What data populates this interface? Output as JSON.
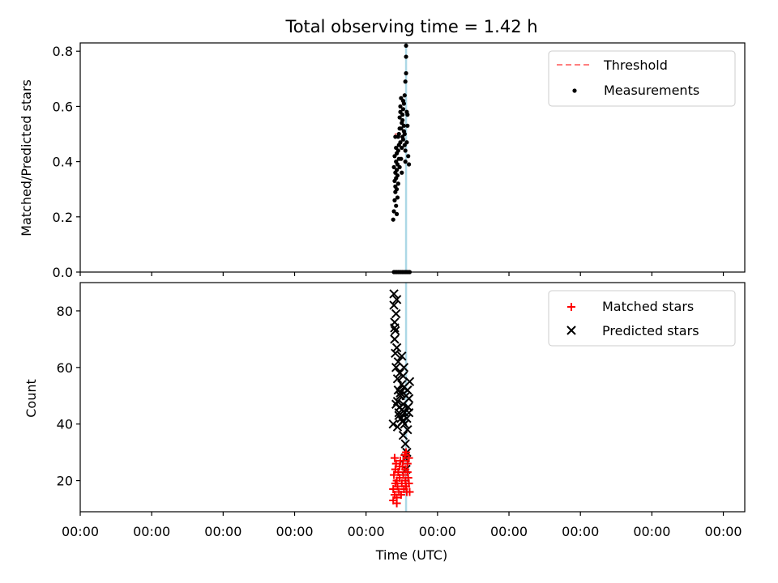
{
  "title": "Total observing time = 1.42 h",
  "x_tick_labels": [
    "00:00",
    "00:00",
    "00:00",
    "00:00",
    "00:00",
    "00:00",
    "00:00",
    "00:00",
    "00:00",
    "00:00"
  ],
  "xlabel": "Time (UTC)",
  "chart_data": [
    {
      "type": "scatter",
      "ylabel": "Matched/Predicted stars",
      "ylim": [
        0,
        0.83
      ],
      "yticks": [
        0.0,
        0.2,
        0.4,
        0.6,
        0.8
      ],
      "ytick_labels": [
        "0.0",
        "0.2",
        "0.4",
        "0.6",
        "0.8"
      ],
      "xlim": [
        0,
        9.3
      ],
      "grid": false,
      "legend": {
        "position": "top-right",
        "entries": [
          "Threshold",
          "Measurements"
        ]
      },
      "threshold": {
        "name": "Threshold",
        "value": 0.5,
        "color": "#ff7f7f",
        "x": [
          4.4,
          4.56
        ]
      },
      "vline": {
        "x": 4.56,
        "color": "#add8e6"
      },
      "series": [
        {
          "name": "Measurements",
          "color": "#000000",
          "x": [
            4.38,
            4.39,
            4.39,
            4.4,
            4.4,
            4.4,
            4.41,
            4.41,
            4.41,
            4.41,
            4.42,
            4.42,
            4.42,
            4.42,
            4.43,
            4.43,
            4.43,
            4.43,
            4.44,
            4.44,
            4.44,
            4.45,
            4.45,
            4.45,
            4.46,
            4.46,
            4.46,
            4.47,
            4.47,
            4.47,
            4.48,
            4.48,
            4.48,
            4.49,
            4.49,
            4.49,
            4.5,
            4.5,
            4.5,
            4.51,
            4.51,
            4.51,
            4.52,
            4.52,
            4.52,
            4.53,
            4.53,
            4.53,
            4.54,
            4.54,
            4.54,
            4.55,
            4.55,
            4.55,
            4.56,
            4.56,
            4.56,
            4.57,
            4.57,
            4.58,
            4.58,
            4.59,
            4.6,
            4.39,
            4.41,
            4.43,
            4.45,
            4.47,
            4.49,
            4.51,
            4.53,
            4.55,
            4.57,
            4.59,
            4.61
          ],
          "y": [
            0.19,
            0.22,
            0.38,
            0.42,
            0.26,
            0.33,
            0.29,
            0.36,
            0.49,
            0.31,
            0.45,
            0.24,
            0.4,
            0.34,
            0.21,
            0.37,
            0.3,
            0.43,
            0.27,
            0.39,
            0.35,
            0.44,
            0.32,
            0.49,
            0.5,
            0.41,
            0.46,
            0.52,
            0.56,
            0.38,
            0.47,
            0.58,
            0.6,
            0.52,
            0.63,
            0.41,
            0.45,
            0.54,
            0.36,
            0.49,
            0.57,
            0.55,
            0.59,
            0.62,
            0.48,
            0.53,
            0.51,
            0.61,
            0.46,
            0.5,
            0.64,
            0.4,
            0.44,
            0.69,
            0.72,
            0.78,
            0.82,
            0.58,
            0.47,
            0.57,
            0.53,
            0.42,
            0.39,
            0.0,
            0.0,
            0.0,
            0.0,
            0.0,
            0.0,
            0.0,
            0.0,
            0.0,
            0.0,
            0.0,
            0.0
          ]
        }
      ]
    },
    {
      "type": "scatter",
      "ylabel": "Count",
      "ylim": [
        9,
        90
      ],
      "yticks": [
        20,
        40,
        60,
        80
      ],
      "ytick_labels": [
        "20",
        "40",
        "60",
        "80"
      ],
      "xlim": [
        0,
        9.3
      ],
      "grid": false,
      "legend": {
        "position": "top-right",
        "entries": [
          "Matched stars",
          "Predicted stars"
        ]
      },
      "vline": {
        "x": 4.56,
        "color": "#add8e6"
      },
      "series": [
        {
          "name": "Matched stars",
          "marker": "plus",
          "color": "#ff0000",
          "x": [
            4.38,
            4.38,
            4.39,
            4.4,
            4.4,
            4.41,
            4.41,
            4.42,
            4.43,
            4.43,
            4.44,
            4.45,
            4.46,
            4.47,
            4.48,
            4.49,
            4.5,
            4.51,
            4.52,
            4.53,
            4.54,
            4.55,
            4.55,
            4.56,
            4.57,
            4.58,
            4.59,
            4.6,
            4.61,
            4.6,
            4.58,
            4.56,
            4.52,
            4.47,
            4.43
          ],
          "y": [
            13,
            17,
            22,
            28,
            15,
            19,
            24,
            26,
            14,
            20,
            18,
            23,
            16,
            21,
            27,
            15,
            19,
            25,
            22,
            17,
            29,
            20,
            24,
            18,
            16,
            26,
            21,
            19,
            16,
            28,
            23,
            30,
            27,
            25,
            12
          ]
        },
        {
          "name": "Predicted stars",
          "marker": "x",
          "color": "#000000",
          "x": [
            4.38,
            4.39,
            4.39,
            4.4,
            4.4,
            4.41,
            4.41,
            4.42,
            4.42,
            4.43,
            4.43,
            4.44,
            4.44,
            4.45,
            4.45,
            4.46,
            4.47,
            4.47,
            4.48,
            4.49,
            4.5,
            4.5,
            4.51,
            4.52,
            4.52,
            4.53,
            4.54,
            4.55,
            4.55,
            4.56,
            4.57,
            4.58,
            4.59,
            4.6,
            4.61,
            4.56,
            4.54,
            4.52,
            4.5,
            4.48,
            4.46,
            4.44,
            4.42,
            4.4,
            4.58,
            4.6,
            4.57,
            4.53
          ],
          "y": [
            40,
            86,
            82,
            70,
            76,
            65,
            73,
            79,
            60,
            67,
            84,
            48,
            56,
            62,
            52,
            44,
            58,
            46,
            50,
            42,
            64,
            54,
            41,
            47,
            36,
            53,
            44,
            33,
            28,
            50,
            42,
            38,
            46,
            49,
            55,
            24,
            40,
            57,
            45,
            51,
            43,
            39,
            47,
            74,
            52,
            44,
            30,
            60
          ]
        }
      ]
    }
  ]
}
